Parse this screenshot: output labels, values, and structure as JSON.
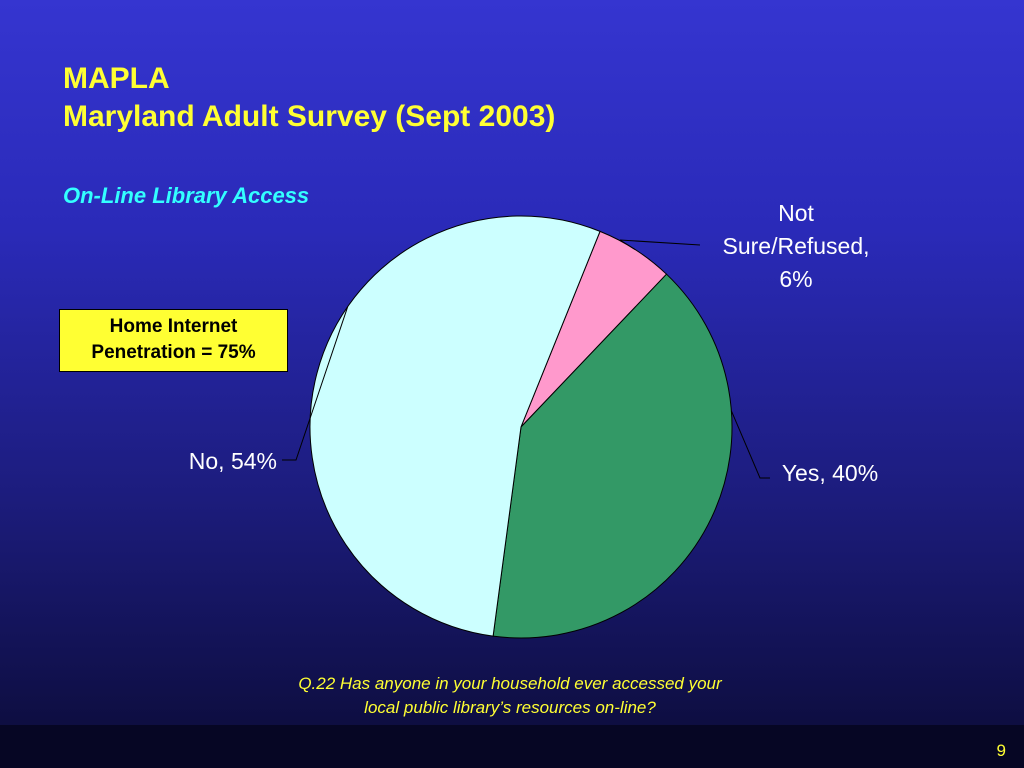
{
  "slide": {
    "title_line1": "MAPLA",
    "title_line2": "Maryland Adult Survey (Sept 2003)",
    "subtitle": "On-Line Library Access",
    "callout_line1": "Home Internet",
    "callout_line2": "Penetration = 75%",
    "question_line1": "Q.22  Has anyone in your household ever accessed your",
    "question_line2": "local public library’s resources on-line?",
    "page_number": "9"
  },
  "chart_data": {
    "type": "pie",
    "categories": [
      "Not Sure/Refused",
      "Yes",
      "No"
    ],
    "values": [
      6,
      40,
      54
    ],
    "data_labels": [
      [
        "Not",
        "Sure/Refused,",
        "6%"
      ],
      [
        "Yes, 40%"
      ],
      [
        "No, 54%"
      ]
    ],
    "colors": [
      "#ff99cc",
      "#339966",
      "#ccffff"
    ],
    "slice_border_color": "#000000"
  }
}
